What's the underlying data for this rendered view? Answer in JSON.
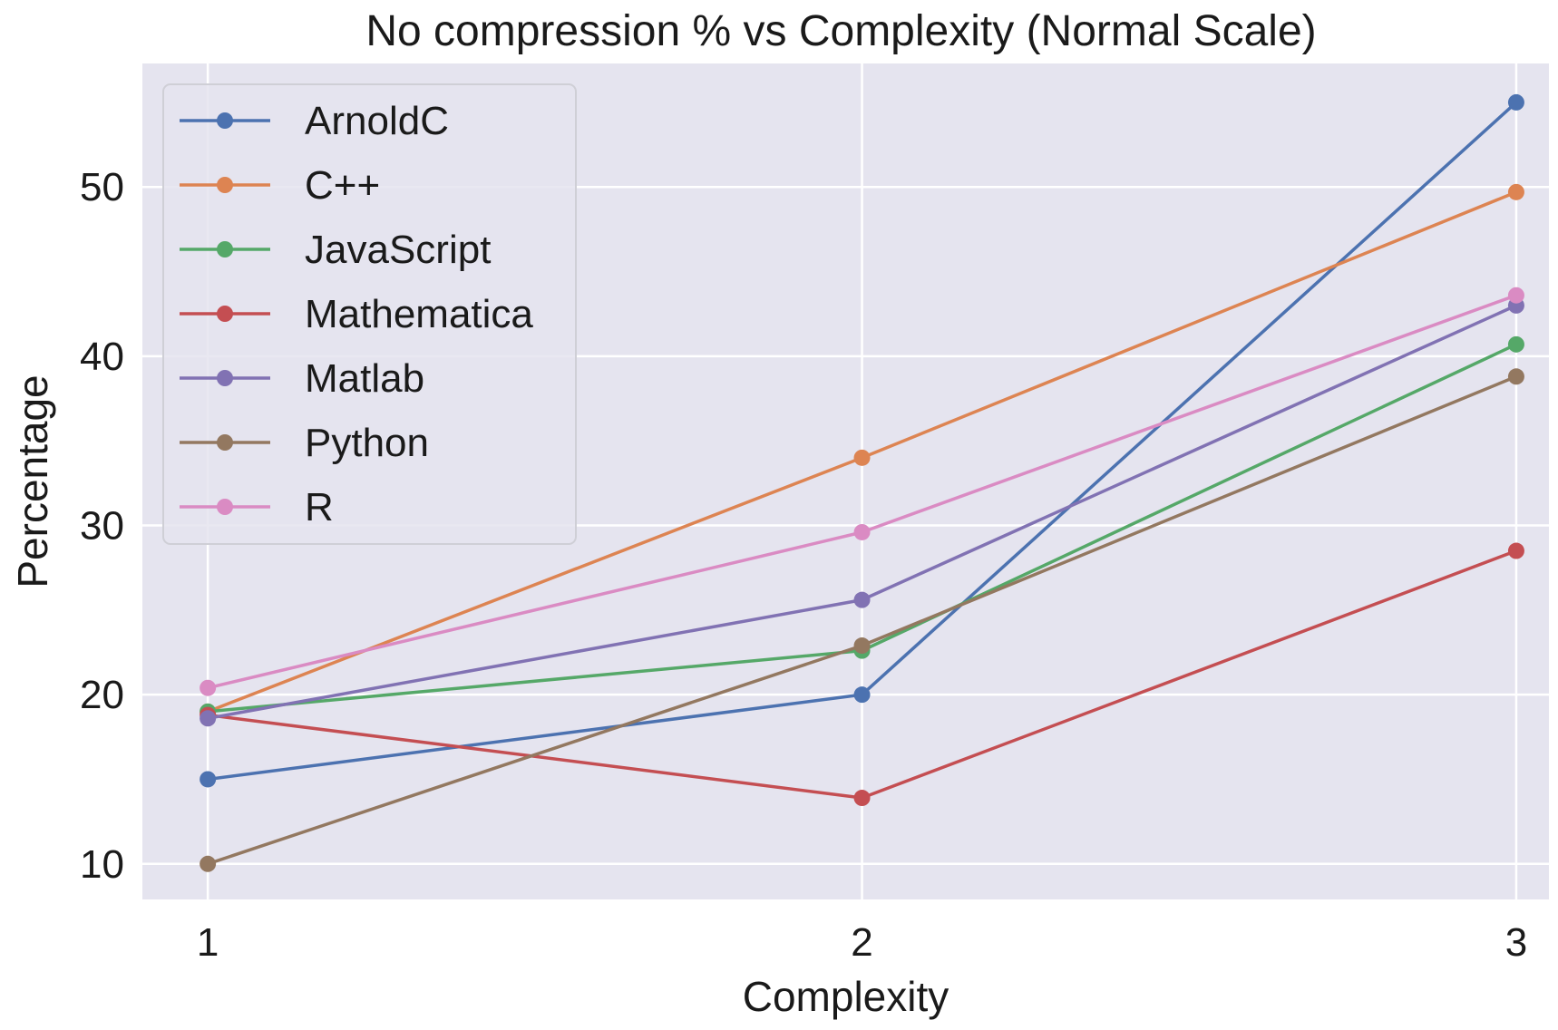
{
  "chart_data": {
    "type": "line",
    "title": "No compression %  vs Complexity (Normal Scale)",
    "xlabel": "Complexity",
    "ylabel": "Percentage",
    "x": [
      1,
      2,
      3
    ],
    "x_tick_labels": [
      "1",
      "2",
      "3"
    ],
    "y_ticks": [
      10,
      20,
      30,
      40,
      50
    ],
    "y_tick_labels": [
      "10",
      "20",
      "30",
      "40",
      "50"
    ],
    "xlim": [
      0.9,
      3.05
    ],
    "ylim": [
      7.9,
      57.3
    ],
    "grid": true,
    "legend_position": "top-left",
    "series": [
      {
        "name": "ArnoldC",
        "color": "#4c72b0",
        "values": [
          15.0,
          20.0,
          55.0
        ]
      },
      {
        "name": "C++",
        "color": "#dd8452",
        "values": [
          19.0,
          34.0,
          49.7
        ]
      },
      {
        "name": "JavaScript",
        "color": "#55a868",
        "values": [
          19.0,
          22.6,
          40.7
        ]
      },
      {
        "name": "Mathematica",
        "color": "#c44e52",
        "values": [
          18.8,
          13.9,
          28.5
        ]
      },
      {
        "name": "Matlab",
        "color": "#8172b3",
        "values": [
          18.6,
          25.6,
          43.0
        ]
      },
      {
        "name": "Python",
        "color": "#937860",
        "values": [
          10.0,
          22.9,
          38.8
        ]
      },
      {
        "name": "R",
        "color": "#da8bc3",
        "values": [
          20.4,
          29.6,
          43.6
        ]
      }
    ]
  },
  "colors": {
    "plot_background": "#e5e4ef",
    "grid": "#ffffff"
  }
}
